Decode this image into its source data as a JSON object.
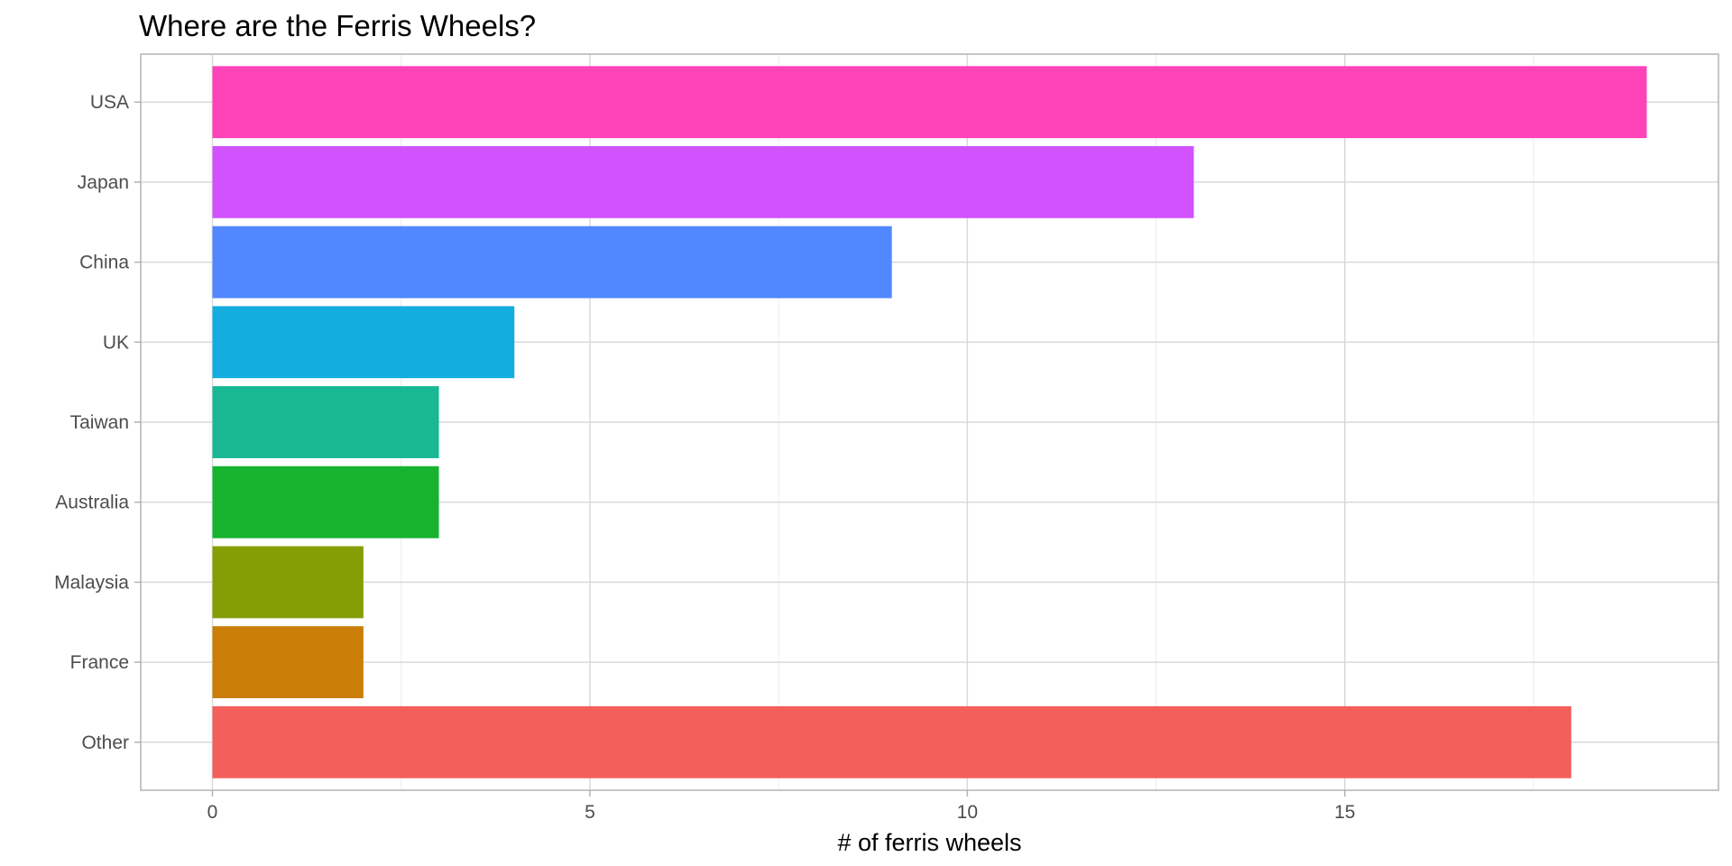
{
  "chart_data": {
    "type": "bar",
    "orientation": "horizontal",
    "title": "Where are the Ferris Wheels?",
    "xlabel": "# of ferris wheels",
    "ylabel": "",
    "categories": [
      "USA",
      "Japan",
      "China",
      "UK",
      "Taiwan",
      "Australia",
      "Malaysia",
      "France",
      "Other"
    ],
    "values": [
      19,
      13,
      9,
      4,
      3,
      3,
      2,
      2,
      18
    ],
    "colors": [
      "#FF43B9",
      "#D252FF",
      "#5288FF",
      "#14ADDF",
      "#17B892",
      "#17B32F",
      "#859E05",
      "#CA7E08",
      "#F35F5B"
    ],
    "xlim": [
      -0.95,
      19.95
    ],
    "xticks": [
      0,
      5,
      10,
      15
    ],
    "xtick_labels": [
      "0",
      "5",
      "10",
      "15"
    ],
    "grid": true,
    "legend": "none"
  }
}
